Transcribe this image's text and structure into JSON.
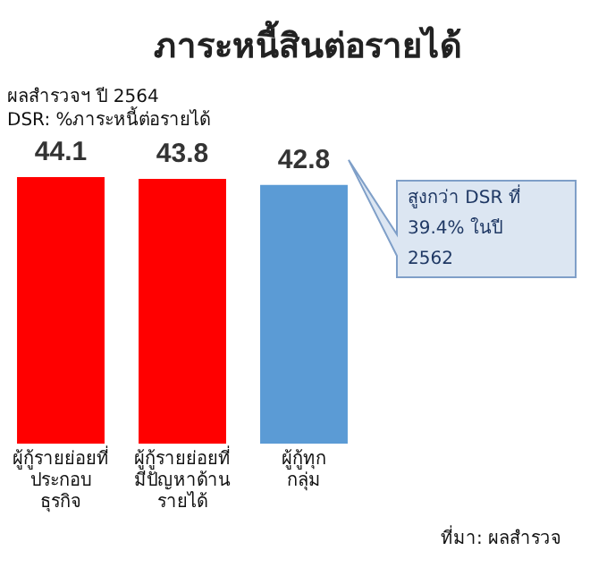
{
  "chart_data": {
    "type": "bar",
    "title": "ภาระหนี้สินต่อรายได้",
    "subtitle": "ผลสำรวจฯ ปี 2564\nDSR: %ภาระหนี้ต่อรายได้",
    "categories": [
      "ผู้กู้รายย่อยที่\nประกอบ\nธุรกิจ",
      "ผู้กู้รายย่อยที่\nมีปัญหาด้าน\nรายได้",
      "ผู้กู้ทุก\nกลุ่ม"
    ],
    "values": [
      44.1,
      43.8,
      42.8
    ],
    "colors": [
      "#ff0000",
      "#ff0000",
      "#5b9bd5"
    ],
    "data_labels": true,
    "grid": false,
    "legend": false,
    "annotations": [
      "สูงกว่า DSR ที่\n39.4% ในปี\n2562",
      "ที่มา: ผลสำรวจ"
    ]
  }
}
